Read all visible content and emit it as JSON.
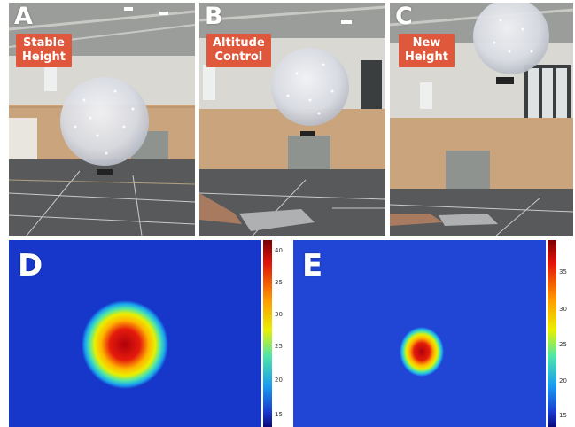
{
  "panels": {
    "a": {
      "letter": "A",
      "caption": "Stable\nHeight",
      "caption_l1": "Stable",
      "caption_l2": "Height"
    },
    "b": {
      "letter": "B",
      "caption_l1": "Altitude",
      "caption_l2": "Control"
    },
    "c": {
      "letter": "C",
      "caption_l1": "New",
      "caption_l2": "Height"
    },
    "d": {
      "letter": "D",
      "colorbar_ticks": [
        "40",
        "35",
        "30",
        "25",
        "20",
        "15"
      ]
    },
    "e": {
      "letter": "E",
      "colorbar_ticks": [
        "35",
        "30",
        "25",
        "20",
        "15"
      ]
    }
  },
  "colors": {
    "caption_bg": "#e0583b",
    "heat_bg": "#1637c9",
    "heat_hot": "#b8000e"
  }
}
